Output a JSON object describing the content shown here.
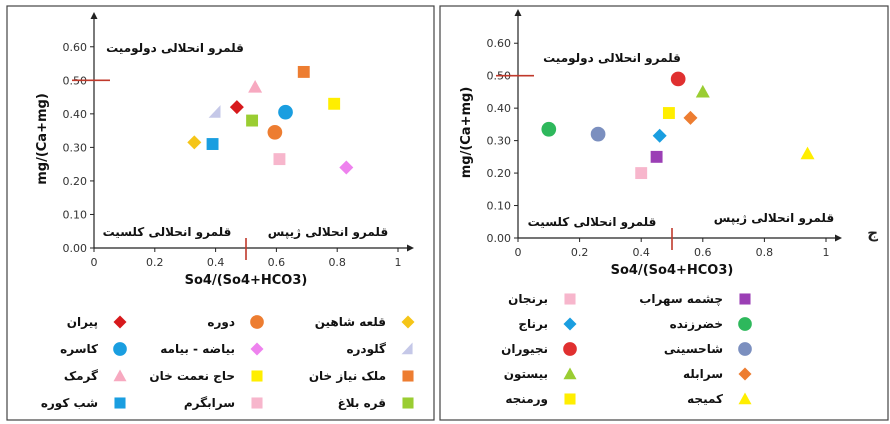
{
  "figure_label": "ج",
  "chart_data": [
    {
      "type": "scatter",
      "title": "",
      "xlabel": "So4/(So4+HCO3)",
      "ylabel": "mg/(Ca+mg)",
      "xlim": [
        0,
        1
      ],
      "ylim": [
        0,
        0.65
      ],
      "x_ticks": [
        "0",
        "0.2",
        "0.4",
        "0.6",
        "0.8",
        "1"
      ],
      "y_ticks": [
        "0.00",
        "0.10",
        "0.20",
        "0.30",
        "0.40",
        "0.50",
        "0.60"
      ],
      "grid": false,
      "reference_lines": {
        "x": 0.5,
        "y": 0.5,
        "color": "#c0392b"
      },
      "region_labels": {
        "dolomite": "قلمرو انحلالی دولومیت",
        "calcite": "قلمرو انحلالی کلسیت",
        "gypsum": "قلمرو انحلالی ژیپس"
      },
      "series": [
        {
          "name": "قلعه شاهین",
          "marker": "diamond",
          "color": "#f5c518",
          "x": 0.33,
          "y": 0.315
        },
        {
          "name": "دوره",
          "marker": "circle",
          "color": "#ed7d31",
          "x": 0.595,
          "y": 0.345
        },
        {
          "name": "پیران",
          "marker": "diamond",
          "color": "#d7191c",
          "x": 0.47,
          "y": 0.42
        },
        {
          "name": "گلودره",
          "marker": "triangle-left",
          "color": "#c5c8e8",
          "x": 0.4,
          "y": 0.405
        },
        {
          "name": "بیاضه - بیامه",
          "marker": "diamond",
          "color": "#ee82ee",
          "x": 0.83,
          "y": 0.24
        },
        {
          "name": "کاسره",
          "marker": "circle",
          "color": "#1a9ee0",
          "x": 0.63,
          "y": 0.405
        },
        {
          "name": "ملک نیاز خان",
          "marker": "square",
          "color": "#ed7d31",
          "x": 0.69,
          "y": 0.525
        },
        {
          "name": "حاج نعمت خان",
          "marker": "square",
          "color": "#ffee00",
          "x": 0.79,
          "y": 0.43
        },
        {
          "name": "گرمک",
          "marker": "triangle",
          "color": "#f7a9c0",
          "x": 0.53,
          "y": 0.48
        },
        {
          "name": "قره بلاغ",
          "marker": "square",
          "color": "#9acd32",
          "x": 0.52,
          "y": 0.38
        },
        {
          "name": "سرابگرم",
          "marker": "square",
          "color": "#f7b6cc",
          "x": 0.61,
          "y": 0.265
        },
        {
          "name": "شب کوره",
          "marker": "square",
          "color": "#1a9ee0",
          "x": 0.39,
          "y": 0.31
        }
      ]
    },
    {
      "type": "scatter",
      "title": "",
      "xlabel": "So4/(So4+HCO3)",
      "ylabel": "mg/(Ca+mg)",
      "xlim": [
        0,
        1
      ],
      "ylim": [
        0,
        0.65
      ],
      "x_ticks": [
        "0",
        "0.2",
        "0.4",
        "0.6",
        "0.8",
        "1"
      ],
      "y_ticks": [
        "0.00",
        "0.10",
        "0.20",
        "0.30",
        "0.40",
        "0.50",
        "0.60"
      ],
      "grid": false,
      "reference_lines": {
        "x": 0.5,
        "y": 0.5,
        "color": "#c0392b"
      },
      "region_labels": {
        "dolomite": "قلمرو انحلالی دولومیت",
        "calcite": "قلمرو انحلالی کلسیت",
        "gypsum": "قلمرو انحلالی ژیپس"
      },
      "series": [
        {
          "name": "چشمه سهراب",
          "marker": "square",
          "color": "#9b3fb5",
          "x": 0.45,
          "y": 0.25
        },
        {
          "name": "برنجان",
          "marker": "square",
          "color": "#f7b6cc",
          "x": 0.4,
          "y": 0.2
        },
        {
          "name": "خضرزنده",
          "marker": "circle",
          "color": "#2eb85c",
          "x": 0.1,
          "y": 0.335
        },
        {
          "name": "برناج",
          "marker": "diamond",
          "color": "#1a9ee0",
          "x": 0.46,
          "y": 0.315
        },
        {
          "name": "شاحسینی",
          "marker": "circle",
          "color": "#7b8fbf",
          "x": 0.26,
          "y": 0.32
        },
        {
          "name": "نجیوران",
          "marker": "circle",
          "color": "#e03030",
          "x": 0.52,
          "y": 0.49
        },
        {
          "name": "سرابله",
          "marker": "diamond",
          "color": "#ed7d31",
          "x": 0.56,
          "y": 0.37
        },
        {
          "name": "بیستون",
          "marker": "triangle",
          "color": "#9acd32",
          "x": 0.6,
          "y": 0.45
        },
        {
          "name": "کمیجه",
          "marker": "triangle",
          "color": "#ffee00",
          "x": 0.94,
          "y": 0.26
        },
        {
          "name": "ورمنجه",
          "marker": "square",
          "color": "#ffee00",
          "x": 0.49,
          "y": 0.385
        }
      ]
    }
  ]
}
